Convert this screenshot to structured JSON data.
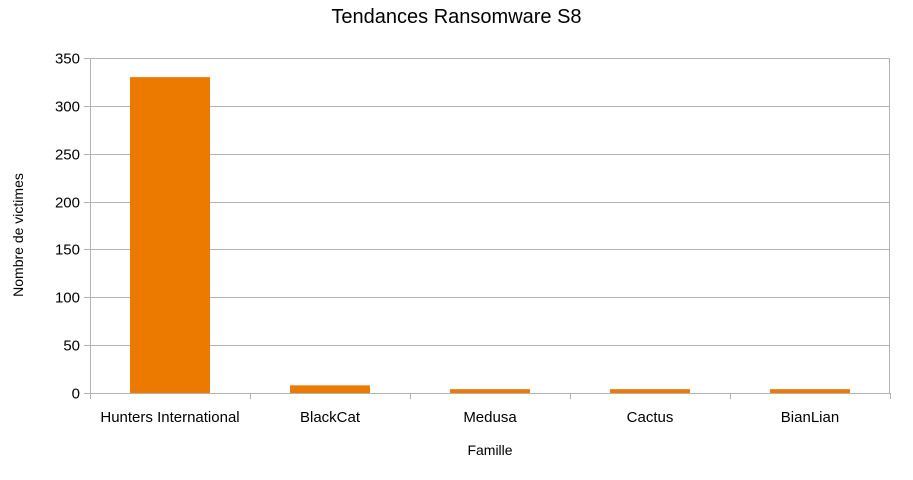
{
  "chart_data": {
    "type": "bar",
    "title": "Tendances Ransomware S8",
    "xlabel": "Famille",
    "ylabel": "Nombre de victimes",
    "categories": [
      "Hunters International",
      "BlackCat",
      "Medusa",
      "Cactus",
      "BianLian"
    ],
    "values": [
      330,
      8,
      4,
      4,
      4
    ],
    "ylim": [
      0,
      350
    ],
    "yticks": [
      0,
      50,
      100,
      150,
      200,
      250,
      300,
      350
    ],
    "grid": true,
    "legend": "none",
    "bar_color": "#ec7a00",
    "grid_color": "#b3b3b3"
  }
}
